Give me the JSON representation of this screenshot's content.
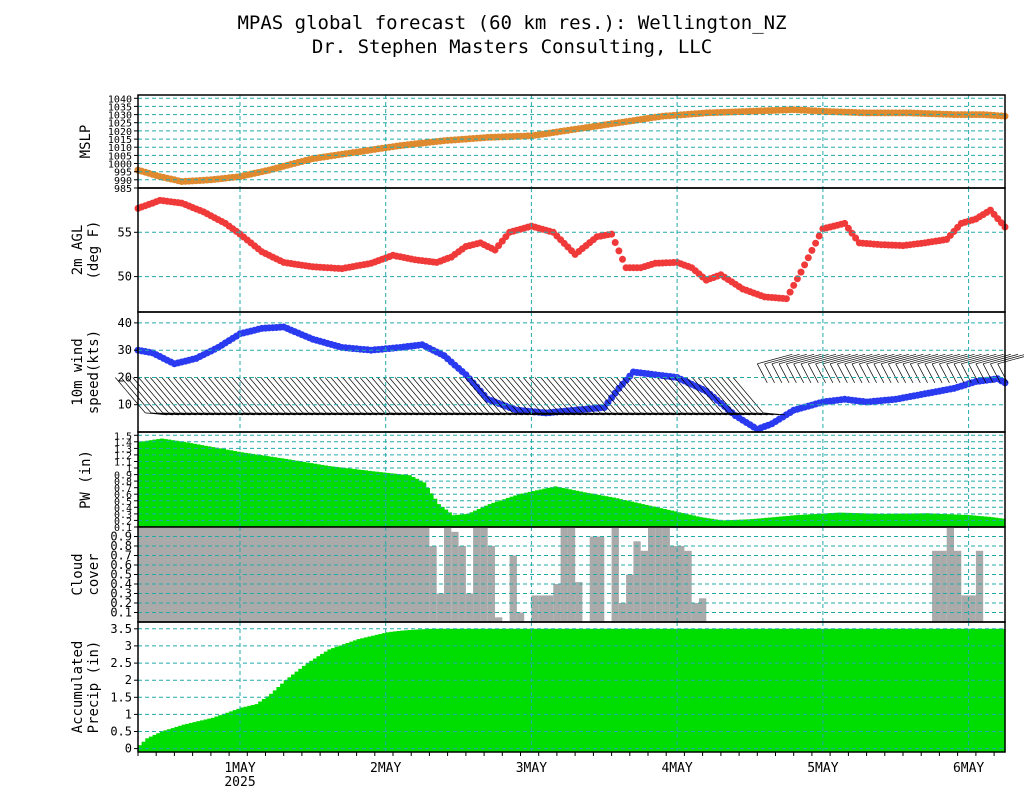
{
  "title": "MPAS global forecast (60 km res.): Wellington_NZ",
  "subtitle": "Dr. Stephen Masters Consulting, LLC",
  "colors": {
    "mslp": "#e08a30",
    "temp": "#f03a3a",
    "wind": "#2a3af0",
    "pw": "#00dd00",
    "cloud": "#aaaaaa",
    "precip": "#00dd00",
    "grid": "#22aaaa"
  },
  "chart_data": [
    {
      "type": "line",
      "ylabel": "MSLP",
      "ylim": [
        985,
        1042
      ],
      "yticks": [
        985,
        990,
        995,
        1000,
        1005,
        1010,
        1015,
        1020,
        1025,
        1030,
        1035,
        1040
      ],
      "x": [
        0.3,
        0.45,
        0.6,
        0.8,
        1.0,
        1.2,
        1.5,
        1.8,
        2.1,
        2.4,
        2.7,
        3.0,
        3.3,
        3.6,
        3.9,
        4.2,
        4.5,
        4.8,
        5.0,
        5.3,
        5.6,
        5.9,
        6.1,
        6.25
      ],
      "values": [
        996,
        992,
        989,
        990,
        992,
        996,
        1003,
        1007,
        1011,
        1014,
        1016,
        1017,
        1021,
        1025,
        1029,
        1031,
        1032,
        1033,
        1032,
        1031,
        1031,
        1030,
        1030,
        1029
      ]
    },
    {
      "type": "line",
      "ylabel": "2m AGL\n(deg F)",
      "ylim": [
        46,
        60
      ],
      "yticks": [
        50,
        55
      ],
      "x": [
        0.3,
        0.45,
        0.6,
        0.75,
        0.9,
        1.0,
        1.15,
        1.3,
        1.5,
        1.7,
        1.9,
        2.05,
        2.2,
        2.35,
        2.45,
        2.55,
        2.65,
        2.75,
        2.85,
        3.0,
        3.15,
        3.3,
        3.45,
        3.55,
        3.65,
        3.75,
        3.85,
        4.0,
        4.1,
        4.2,
        4.3,
        4.45,
        4.6,
        4.75,
        4.85,
        5.0,
        5.15,
        5.25,
        5.4,
        5.55,
        5.7,
        5.85,
        5.95,
        6.05,
        6.15,
        6.25
      ],
      "values": [
        57.7,
        58.6,
        58.3,
        57.3,
        56.0,
        54.8,
        52.8,
        51.6,
        51.1,
        50.9,
        51.5,
        52.4,
        51.9,
        51.6,
        52.2,
        53.4,
        53.8,
        53.0,
        55.0,
        55.7,
        55.0,
        52.5,
        54.5,
        54.8,
        51.0,
        51.0,
        51.5,
        51.6,
        51.0,
        49.6,
        50.2,
        48.6,
        47.7,
        47.5,
        50.5,
        55.4,
        56.0,
        53.8,
        53.6,
        53.5,
        53.8,
        54.2,
        56.0,
        56.5,
        57.5,
        55.6
      ]
    },
    {
      "type": "line",
      "ylabel": "10m wind\nspeed(kts)",
      "ylim": [
        0,
        44
      ],
      "yticks": [
        10,
        20,
        30,
        40
      ],
      "x": [
        0.3,
        0.4,
        0.55,
        0.7,
        0.85,
        1.0,
        1.15,
        1.3,
        1.5,
        1.7,
        1.9,
        2.1,
        2.25,
        2.4,
        2.55,
        2.7,
        2.9,
        3.1,
        3.3,
        3.5,
        3.6,
        3.7,
        3.85,
        4.0,
        4.2,
        4.4,
        4.55,
        4.65,
        4.8,
        5.0,
        5.15,
        5.3,
        5.5,
        5.7,
        5.9,
        6.05,
        6.2,
        6.25
      ],
      "values": [
        30,
        29,
        25,
        27,
        31,
        36,
        38,
        38.5,
        34,
        31,
        30,
        31,
        32,
        28,
        21,
        12,
        8,
        7,
        8,
        9,
        16,
        22,
        21,
        20,
        15,
        6,
        1,
        3,
        8,
        11,
        12,
        11,
        12,
        14,
        16,
        18.5,
        19.5,
        18
      ]
    },
    {
      "type": "area",
      "ylabel": "PW (in)",
      "ylim": [
        0.1,
        1.55
      ],
      "yticks": [
        0.1,
        0.2,
        0.3,
        0.4,
        0.5,
        0.6,
        0.7,
        0.8,
        0.9,
        1,
        1.1,
        1.2,
        1.3,
        1.4,
        1.5
      ],
      "x": [
        0.3,
        0.45,
        0.6,
        0.8,
        1.0,
        1.3,
        1.6,
        1.9,
        2.15,
        2.25,
        2.35,
        2.45,
        2.55,
        2.7,
        2.9,
        3.15,
        3.35,
        3.55,
        3.75,
        3.95,
        4.15,
        4.3,
        4.5,
        4.8,
        5.1,
        5.4,
        5.7,
        6.0,
        6.15,
        6.25
      ],
      "values": [
        1.4,
        1.45,
        1.4,
        1.32,
        1.24,
        1.14,
        1.03,
        0.95,
        0.89,
        0.78,
        0.45,
        0.28,
        0.3,
        0.45,
        0.6,
        0.72,
        0.63,
        0.55,
        0.45,
        0.35,
        0.25,
        0.2,
        0.22,
        0.28,
        0.32,
        0.3,
        0.31,
        0.28,
        0.25,
        0.22
      ]
    },
    {
      "type": "bar",
      "ylabel": "Cloud\ncover",
      "ylim": [
        0,
        1
      ],
      "yticks": [
        0.1,
        0.2,
        0.3,
        0.4,
        0.5,
        0.6,
        0.7,
        0.8,
        0.9
      ],
      "x": [
        0.3,
        2.3,
        2.35,
        2.4,
        2.45,
        2.5,
        2.55,
        2.6,
        2.65,
        2.7,
        2.75,
        2.8,
        2.85,
        2.9,
        2.95,
        3.0,
        3.05,
        3.1,
        3.15,
        3.2,
        3.25,
        3.3,
        3.35,
        3.4,
        3.45,
        3.5,
        3.55,
        3.6,
        3.65,
        3.7,
        3.75,
        3.8,
        3.85,
        3.9,
        3.95,
        4.0,
        4.05,
        4.1,
        4.15,
        4.2,
        4.25,
        4.3,
        4.35,
        4.4,
        5.75,
        5.8,
        5.85,
        5.9,
        5.95,
        6.0,
        6.05,
        6.1,
        6.15
      ],
      "values": [
        1.0,
        0.8,
        0.3,
        1.0,
        0.95,
        0.8,
        0.3,
        1.0,
        1.0,
        0.8,
        0.05,
        0.0,
        0.7,
        0.1,
        0.0,
        0.28,
        0.28,
        0.28,
        0.4,
        1.0,
        1.0,
        0.42,
        0.0,
        0.9,
        0.9,
        0.0,
        1.0,
        0.2,
        0.5,
        0.85,
        0.75,
        1.0,
        1.0,
        1.0,
        0.8,
        0.8,
        0.75,
        0.2,
        0.25,
        0.0,
        0.0,
        0.0,
        0.0,
        0.0,
        0.75,
        0.75,
        1.0,
        0.75,
        0.28,
        0.28,
        0.75,
        0.0,
        0.0
      ]
    },
    {
      "type": "area",
      "ylabel": "Accumulated\nPrecip (in)",
      "ylim": [
        -0.1,
        3.7
      ],
      "yticks": [
        0,
        0.5,
        1,
        1.5,
        2,
        2.5,
        3,
        3.5
      ],
      "x": [
        0.3,
        0.35,
        0.45,
        0.6,
        0.8,
        1.0,
        1.1,
        1.2,
        1.3,
        1.45,
        1.6,
        1.8,
        2.0,
        2.1,
        2.2,
        2.3,
        6.25
      ],
      "values": [
        0.1,
        0.3,
        0.5,
        0.7,
        0.9,
        1.2,
        1.3,
        1.6,
        2.0,
        2.5,
        2.9,
        3.2,
        3.4,
        3.45,
        3.48,
        3.5,
        3.5
      ]
    }
  ],
  "xaxis": {
    "xlim": [
      0.3,
      6.25
    ],
    "ticks": [
      1,
      2,
      3,
      4,
      5,
      6
    ],
    "labels": [
      "1MAY",
      "2MAY",
      "3MAY",
      "4MAY",
      "5MAY",
      "6MAY"
    ],
    "year_label": "2025"
  },
  "wind_barbs_directions": "westerly barbs shown along the wind panel"
}
